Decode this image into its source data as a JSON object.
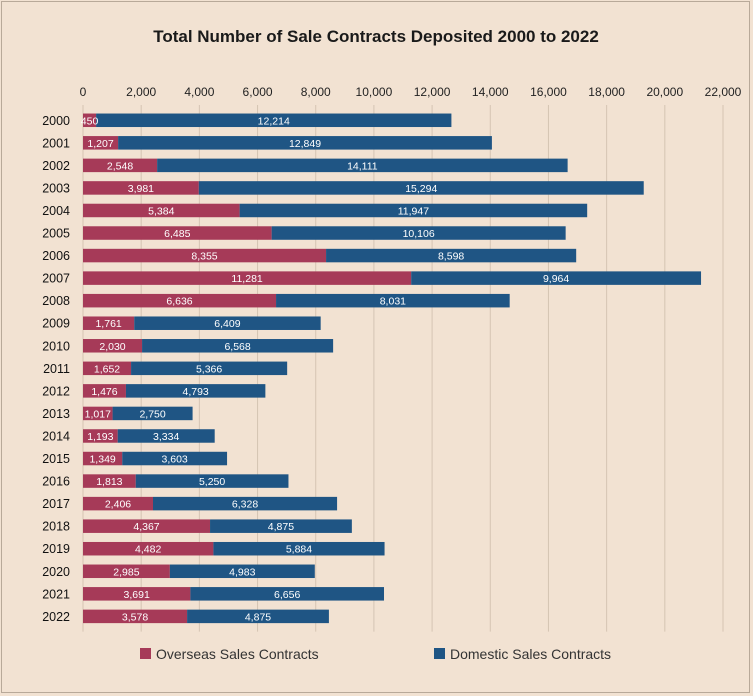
{
  "chart_data": {
    "type": "bar",
    "orientation": "horizontal",
    "stacked": true,
    "title": "Total Number of Sale Contracts Deposited 2000 to 2022",
    "categories": [
      "2000",
      "2001",
      "2002",
      "2003",
      "2004",
      "2005",
      "2006",
      "2007",
      "2008",
      "2009",
      "2010",
      "2011",
      "2012",
      "2013",
      "2014",
      "2015",
      "2016",
      "2017",
      "2018",
      "2019",
      "2020",
      "2021",
      "2022"
    ],
    "series": [
      {
        "name": "Overseas Sales Contracts",
        "color": "#a63a58",
        "values": [
          450,
          1207,
          2548,
          3981,
          5384,
          6485,
          8355,
          11281,
          6636,
          1761,
          2030,
          1652,
          1476,
          1017,
          1193,
          1349,
          1813,
          2406,
          4367,
          4482,
          2985,
          3691,
          3578
        ],
        "labels": [
          "450",
          "1,207",
          "2,548",
          "3,981",
          "5,384",
          "6,485",
          "8,355",
          "11,281",
          "6,636",
          "1,761",
          "2,030",
          "1,652",
          "1,476",
          "1,017",
          "1,193",
          "1,349",
          "1,813",
          "2,406",
          "4,367",
          "4,482",
          "2,985",
          "3,691",
          "3,578"
        ]
      },
      {
        "name": "Domestic Sales Contracts",
        "color": "#1f5584",
        "values": [
          12214,
          12849,
          14111,
          15294,
          11947,
          10106,
          8598,
          9964,
          8031,
          6409,
          6568,
          5366,
          4793,
          2750,
          3334,
          3603,
          5250,
          6328,
          4875,
          5884,
          4983,
          6656,
          4875
        ],
        "labels": [
          "12,214",
          "12,849",
          "14,111",
          "15,294",
          "11,947",
          "10,106",
          "8,598",
          "9,964",
          "8,031",
          "6,409",
          "6,568",
          "5,366",
          "4,793",
          "2,750",
          "3,334",
          "3,603",
          "5,250",
          "6,328",
          "4,875",
          "5,884",
          "4,983",
          "6,656",
          "4,875"
        ]
      }
    ],
    "xlim": [
      0,
      22000
    ],
    "xticks": [
      0,
      2000,
      4000,
      6000,
      8000,
      10000,
      12000,
      14000,
      16000,
      18000,
      20000,
      22000
    ],
    "xtick_labels": [
      "0",
      "2,000",
      "4,000",
      "6,000",
      "8,000",
      "10,000",
      "12,000",
      "14,000",
      "16,000",
      "18,000",
      "20,000",
      "22,000"
    ],
    "x_axis_position": "top",
    "grid": true,
    "legend_position": "bottom"
  }
}
